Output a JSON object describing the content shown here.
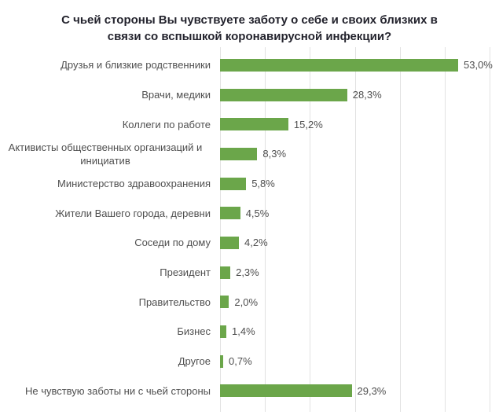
{
  "chart_data": {
    "type": "bar",
    "orientation": "horizontal",
    "title": "С чьей стороны Вы чувствуете заботу о себе и своих близких в связи со вспышкой коронавирусной инфекции?",
    "categories": [
      "Друзья и близкие родственники",
      "Врачи, медики",
      "Коллеги по работе",
      "Активисты общественных организаций и инициатив",
      "Министерство здравоохранения",
      "Жители Вашего города, деревни",
      "Соседи по дому",
      "Президент",
      "Правительство",
      "Бизнес",
      "Другое",
      "Не чувствую заботы ни с чьей стороны"
    ],
    "values": [
      53.0,
      28.3,
      15.2,
      8.3,
      5.8,
      4.5,
      4.2,
      2.3,
      2.0,
      1.4,
      0.7,
      29.3
    ],
    "value_labels": [
      "53,0%",
      "28,3%",
      "15,2%",
      "8,3%",
      "5,8%",
      "4,5%",
      "4,2%",
      "2,3%",
      "2,0%",
      "1,4%",
      "0,7%",
      "29,3%"
    ],
    "xlabel": "",
    "ylabel": "",
    "xlim": [
      0,
      60
    ],
    "gridline_step": 10,
    "grid": true,
    "legend_position": "none",
    "bar_color": "#6ba64a",
    "title_color": "#23232d",
    "label_color": "#4f4f4f",
    "grid_color": "#e2e2e2"
  }
}
